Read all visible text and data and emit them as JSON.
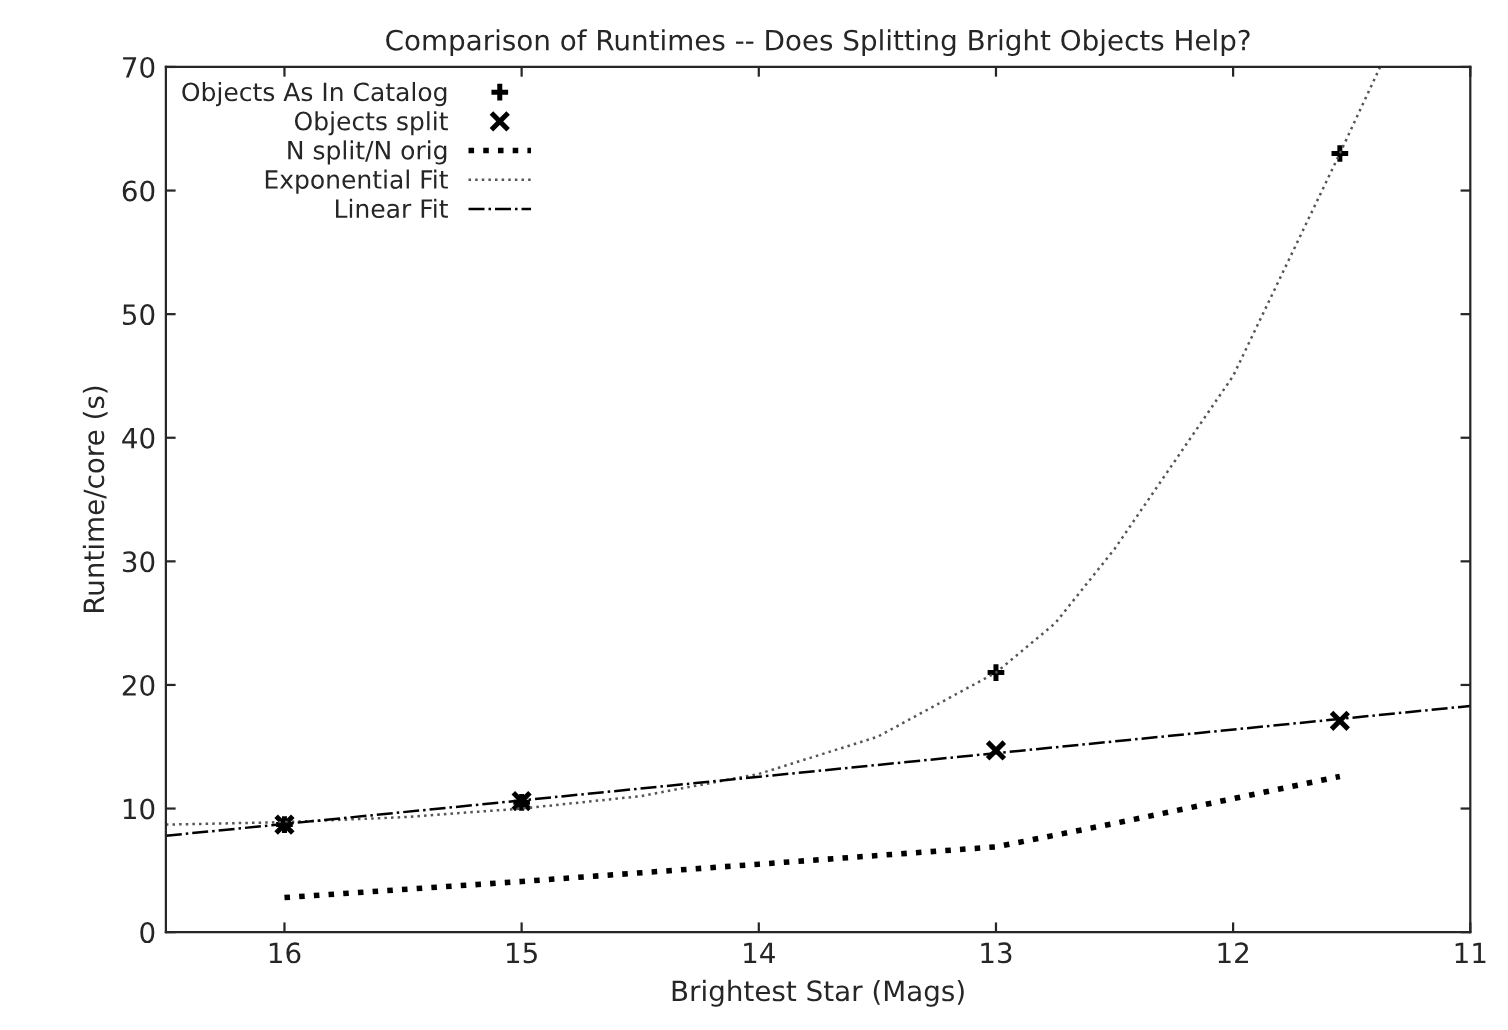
{
  "chart_data": {
    "type": "line",
    "title": "Comparison of Runtimes -- Does Splitting Bright Objects Help?",
    "xlabel": "Brightest Star (Mags)",
    "ylabel": "Runtime/core (s)",
    "xlim": [
      16.5,
      11
    ],
    "ylim": [
      0,
      70
    ],
    "xticks": [
      16,
      15,
      14,
      13,
      12,
      11
    ],
    "yticks": [
      0,
      10,
      20,
      30,
      40,
      50,
      60,
      70
    ],
    "grid": false,
    "legend": "top left",
    "series": [
      {
        "name": "Objects As In Catalog",
        "type": "scatter",
        "marker": "plus",
        "color": "#000000",
        "x": [
          16,
          15,
          13,
          11.55
        ],
        "values": [
          8.7,
          10.5,
          21,
          63
        ]
      },
      {
        "name": "Objects split",
        "type": "scatter",
        "marker": "cross",
        "color": "#000000",
        "x": [
          16,
          15,
          13,
          11.55
        ],
        "values": [
          8.7,
          10.6,
          14.7,
          17.1
        ]
      },
      {
        "name": "N split/N orig",
        "line_style": "dotted",
        "marker": "none",
        "color": "#000000",
        "x": [
          16,
          15,
          14,
          13,
          12.5,
          12,
          11.55
        ],
        "values": [
          2.8,
          4.1,
          5.5,
          6.9,
          8.8,
          10.8,
          12.6
        ]
      },
      {
        "name": "Exponential Fit",
        "line_style": "dotted",
        "marker": "none",
        "color": "#555555",
        "x": [
          16.5,
          16,
          15.5,
          15,
          14.5,
          14,
          13.5,
          13,
          12.75,
          12.5,
          12.25,
          12,
          11.75,
          11.55,
          11.38
        ],
        "values": [
          8.7,
          8.9,
          9.3,
          10.0,
          11.0,
          12.8,
          15.8,
          21,
          25,
          31,
          38,
          45,
          55,
          63,
          70
        ]
      },
      {
        "name": "Linear Fit",
        "line_style": "dashdot",
        "marker": "none",
        "color": "#000000",
        "x": [
          16.5,
          11
        ],
        "values": [
          7.8,
          18.3
        ]
      }
    ]
  }
}
